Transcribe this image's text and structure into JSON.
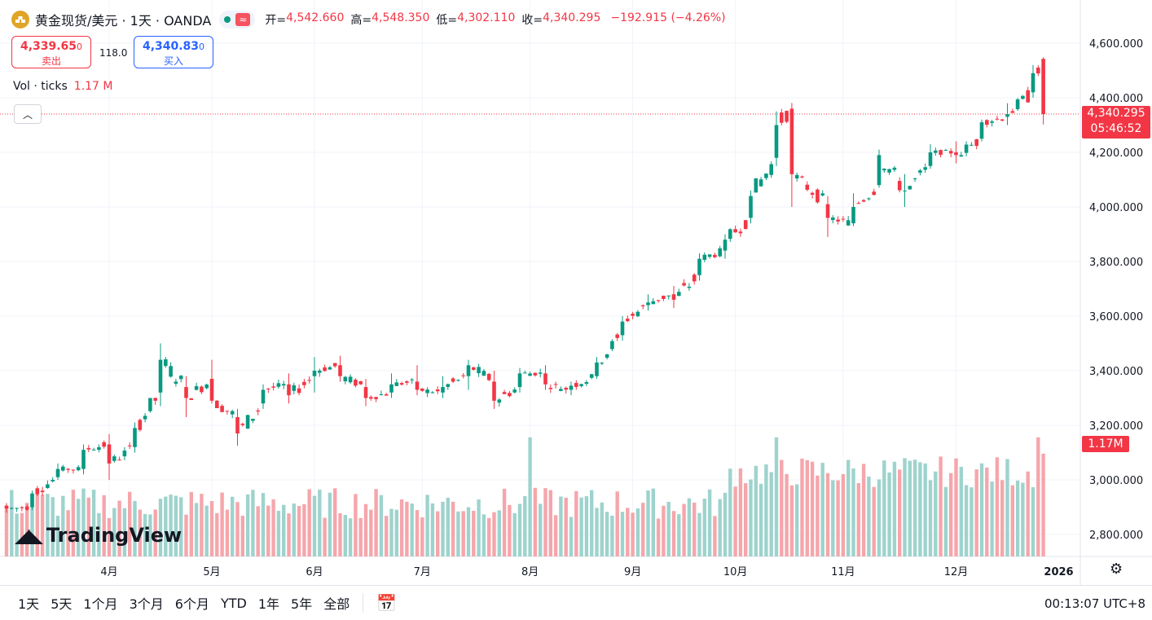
{
  "header": {
    "symbol": "黄金现货/美元 · 1天 · OANDA",
    "open_label": "开=",
    "open": "4,542.660",
    "high_label": "高=",
    "high": "4,548.350",
    "low_label": "低=",
    "low": "4,302.110",
    "close_label": "收=",
    "close": "4,340.295",
    "change": "−192.915 (−4.26%)",
    "live_icon": "wave-icon"
  },
  "trade": {
    "sell_price": "4,339.65",
    "sell_sup": "0",
    "sell_label": "卖出",
    "spread": "118.0",
    "buy_price": "4,340.83",
    "buy_sup": "0",
    "buy_label": "买入"
  },
  "volume_legend": {
    "label": "Vol · ticks",
    "value": "1.17 M"
  },
  "price_tag": {
    "price": "4,340.295",
    "countdown": "05:46:52"
  },
  "volume_tag": "1.17M",
  "watermark": "TradingView",
  "bottom": {
    "ranges": [
      "1天",
      "5天",
      "1个月",
      "3个月",
      "6个月",
      "YTD",
      "1年",
      "5年",
      "全部"
    ],
    "clock": "00:13:07 UTC+8"
  },
  "colors": {
    "up": "#089981",
    "down": "#f23645",
    "up_vol": "#9ed3cd",
    "down_vol": "#f5a6ab"
  },
  "chart_data": {
    "type": "candlestick",
    "title": "黄金现货/美元 · 1天 · OANDA",
    "y_ticks": [
      2800,
      3000,
      3200,
      3400,
      3600,
      3800,
      4000,
      4200,
      4400,
      4600
    ],
    "y_tick_labels": [
      "2,800.000",
      "3,000.000",
      "3,200.000",
      "3,400.000",
      "3,600.000",
      "3,800.000",
      "4,000.000",
      "4,200.000",
      "4,400.000",
      "4,600.000"
    ],
    "x_labels": [
      "4月",
      "5月",
      "6月",
      "7月",
      "8月",
      "9月",
      "10月",
      "11月",
      "12月",
      "2026"
    ],
    "x_label_bar_index": [
      20,
      40,
      60,
      81,
      102,
      122,
      142,
      163,
      185,
      205
    ],
    "last_price": 4340.295,
    "series": [
      {
        "date_index": 0,
        "open": 2905,
        "high": 2915,
        "low": 2880,
        "close": 2895
      },
      {
        "date_index": 5,
        "open": 2900,
        "high": 2960,
        "low": 2890,
        "close": 2950
      },
      {
        "date_index": 10,
        "open": 3010,
        "high": 3060,
        "low": 3000,
        "close": 3040
      },
      {
        "date_index": 15,
        "open": 3040,
        "high": 3130,
        "low": 3020,
        "close": 3110
      },
      {
        "date_index": 20,
        "open": 3130,
        "high": 3168,
        "low": 3000,
        "close": 3060
      },
      {
        "date_index": 25,
        "open": 3120,
        "high": 3210,
        "low": 3100,
        "close": 3190
      },
      {
        "date_index": 30,
        "open": 3320,
        "high": 3500,
        "low": 3270,
        "close": 3440
      },
      {
        "date_index": 35,
        "open": 3340,
        "high": 3380,
        "low": 3230,
        "close": 3300
      },
      {
        "date_index": 40,
        "open": 3370,
        "high": 3440,
        "low": 3280,
        "close": 3290
      },
      {
        "date_index": 45,
        "open": 3230,
        "high": 3260,
        "low": 3125,
        "close": 3170
      },
      {
        "date_index": 50,
        "open": 3280,
        "high": 3350,
        "low": 3260,
        "close": 3330
      },
      {
        "date_index": 55,
        "open": 3350,
        "high": 3390,
        "low": 3280,
        "close": 3310
      },
      {
        "date_index": 60,
        "open": 3380,
        "high": 3450,
        "low": 3320,
        "close": 3400
      },
      {
        "date_index": 65,
        "open": 3420,
        "high": 3455,
        "low": 3360,
        "close": 3380
      },
      {
        "date_index": 70,
        "open": 3340,
        "high": 3370,
        "low": 3270,
        "close": 3300
      },
      {
        "date_index": 75,
        "open": 3320,
        "high": 3390,
        "low": 3300,
        "close": 3350
      },
      {
        "date_index": 80,
        "open": 3360,
        "high": 3420,
        "low": 3310,
        "close": 3330
      },
      {
        "date_index": 85,
        "open": 3320,
        "high": 3380,
        "low": 3300,
        "close": 3340
      },
      {
        "date_index": 90,
        "open": 3380,
        "high": 3440,
        "low": 3330,
        "close": 3420
      },
      {
        "date_index": 95,
        "open": 3360,
        "high": 3400,
        "low": 3260,
        "close": 3290
      },
      {
        "date_index": 100,
        "open": 3340,
        "high": 3410,
        "low": 3320,
        "close": 3390
      },
      {
        "date_index": 105,
        "open": 3390,
        "high": 3420,
        "low": 3330,
        "close": 3350
      },
      {
        "date_index": 110,
        "open": 3330,
        "high": 3360,
        "low": 3310,
        "close": 3345
      },
      {
        "date_index": 115,
        "open": 3380,
        "high": 3450,
        "low": 3370,
        "close": 3430
      },
      {
        "date_index": 120,
        "open": 3530,
        "high": 3600,
        "low": 3510,
        "close": 3580
      },
      {
        "date_index": 125,
        "open": 3640,
        "high": 3680,
        "low": 3620,
        "close": 3650
      },
      {
        "date_index": 130,
        "open": 3680,
        "high": 3710,
        "low": 3630,
        "close": 3660
      },
      {
        "date_index": 135,
        "open": 3750,
        "high": 3830,
        "low": 3730,
        "close": 3810
      },
      {
        "date_index": 140,
        "open": 3840,
        "high": 3900,
        "low": 3810,
        "close": 3880
      },
      {
        "date_index": 145,
        "open": 3960,
        "high": 4060,
        "low": 3940,
        "close": 4040
      },
      {
        "date_index": 150,
        "open": 4180,
        "high": 4350,
        "low": 4150,
        "close": 4300
      },
      {
        "date_index": 153,
        "open": 4360,
        "high": 4381,
        "low": 4000,
        "close": 4120
      },
      {
        "date_index": 160,
        "open": 4010,
        "high": 4040,
        "low": 3890,
        "close": 3960
      },
      {
        "date_index": 165,
        "open": 3940,
        "high": 4050,
        "low": 3930,
        "close": 4000
      },
      {
        "date_index": 170,
        "open": 4080,
        "high": 4210,
        "low": 4070,
        "close": 4190
      },
      {
        "date_index": 175,
        "open": 4060,
        "high": 4120,
        "low": 4000,
        "close": 4060
      },
      {
        "date_index": 180,
        "open": 4150,
        "high": 4230,
        "low": 4140,
        "close": 4200
      },
      {
        "date_index": 185,
        "open": 4200,
        "high": 4240,
        "low": 4160,
        "close": 4190
      },
      {
        "date_index": 190,
        "open": 4250,
        "high": 4320,
        "low": 4240,
        "close": 4310
      },
      {
        "date_index": 195,
        "open": 4330,
        "high": 4380,
        "low": 4300,
        "close": 4340
      },
      {
        "date_index": 200,
        "open": 4420,
        "high": 4520,
        "low": 4400,
        "close": 4490
      },
      {
        "date_index": 202,
        "open": 4542.66,
        "high": 4548.35,
        "low": 4302.11,
        "close": 4340.295
      }
    ],
    "volume_note": "daily tick volume, last bar 1.17M"
  }
}
